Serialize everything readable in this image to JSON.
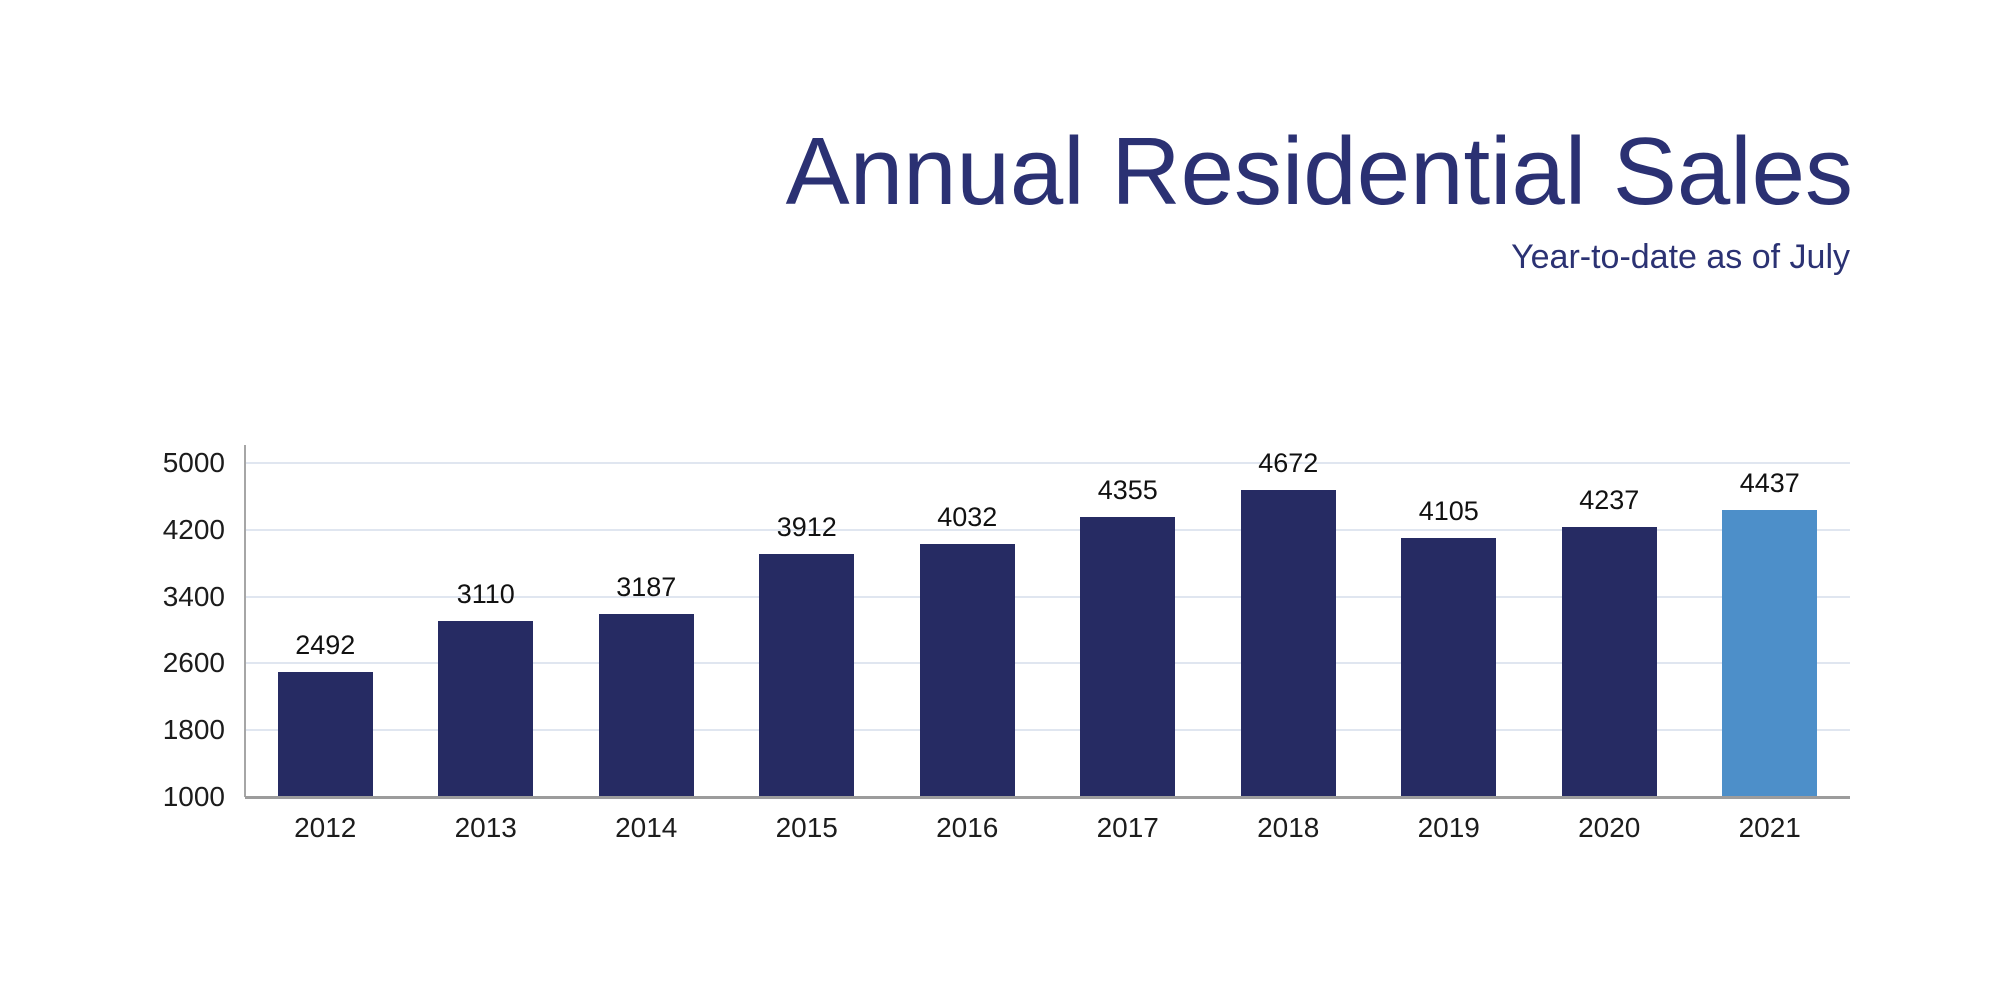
{
  "header": {
    "title": "Annual Residential Sales",
    "subtitle": "Year-to-date as of July",
    "title_color": "#2B3173"
  },
  "chart_data": {
    "type": "bar",
    "title": "Annual Residential Sales",
    "subtitle": "Year-to-date as of July",
    "categories": [
      "2012",
      "2013",
      "2014",
      "2015",
      "2016",
      "2017",
      "2018",
      "2019",
      "2020",
      "2021"
    ],
    "values": [
      2492,
      3110,
      3187,
      3912,
      4032,
      4355,
      4672,
      4105,
      4237,
      4437
    ],
    "value_labels_shown": true,
    "ylim": [
      1000,
      5000
    ],
    "yticks": [
      1000,
      1800,
      2600,
      3400,
      4200,
      5000
    ],
    "grid": true,
    "legend_position": "none",
    "bar_color": "#262B63",
    "highlight_index": 9,
    "highlight_bar_color": "#4D8FC9",
    "gridline_color": "#E0E6F0",
    "axis_color": "#A6A6A6",
    "label_color": "#1C1C1C"
  }
}
